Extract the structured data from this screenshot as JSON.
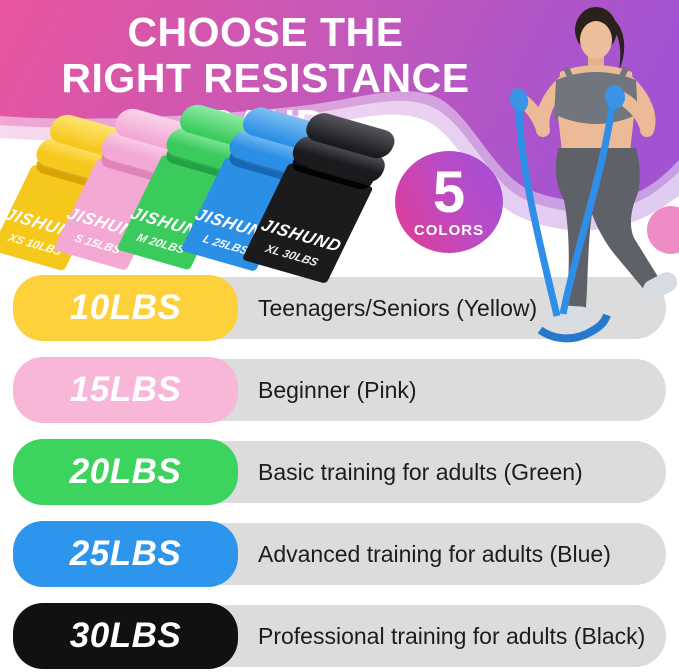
{
  "header": {
    "title_line1": "CHOOSE THE",
    "title_line2": "RIGHT RESISTANCE BAND",
    "gradient_left": "#E9559D",
    "gradient_right": "#A253D2"
  },
  "badge": {
    "number": "5",
    "label": "COLORS"
  },
  "brand": "JISHUND",
  "bands": [
    {
      "name": "yellow",
      "size_label": "XS 10LBS",
      "color": "#F6C81C",
      "light": "#FFE472",
      "dark": "#D69E04"
    },
    {
      "name": "pink",
      "size_label": "S 15LBS",
      "color": "#F3A9D4",
      "light": "#FBD3EA",
      "dark": "#DC7FB5"
    },
    {
      "name": "green",
      "size_label": "M 20LBS",
      "color": "#3BCB5D",
      "light": "#8BEBA3",
      "dark": "#1E9E3E"
    },
    {
      "name": "blue",
      "size_label": "L 25LBS",
      "color": "#2C8FE6",
      "light": "#7FC0F3",
      "dark": "#1463B0"
    },
    {
      "name": "black",
      "size_label": "XL 30LBS",
      "color": "#1B1B1E",
      "light": "#55555C",
      "dark": "#000000"
    }
  ],
  "rows": [
    {
      "weight": "10LBS",
      "pill_color": "#FCD13B",
      "description": "Teenagers/Seniors (Yellow)"
    },
    {
      "weight": "15LBS",
      "pill_color": "#F8B6D8",
      "description": "Beginner (Pink)"
    },
    {
      "weight": "20LBS",
      "pill_color": "#3DD35F",
      "description": "Basic training for adults (Green)"
    },
    {
      "weight": "25LBS",
      "pill_color": "#2D96EC",
      "description": "Advanced training for adults (Blue)"
    },
    {
      "weight": "30LBS",
      "pill_color": "#111111",
      "description": "Professional training for adults (Black)"
    }
  ],
  "colors": {
    "row_background": "#DCDCDC",
    "band_in_use": "#2F8FE8",
    "badge_gradient": [
      "#E23B93",
      "#A04ED8"
    ]
  }
}
